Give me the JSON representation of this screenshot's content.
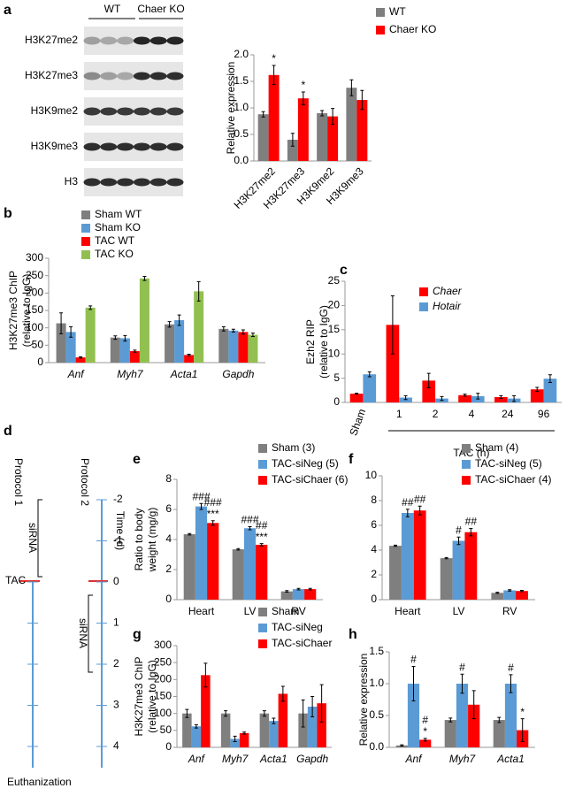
{
  "blot": {
    "label": "a",
    "groups": [
      "WT",
      "Chaer KO"
    ],
    "rows": [
      "H3K27me2",
      "H3K27me3",
      "H3K9me2",
      "H3K9me3",
      "H3"
    ]
  },
  "timeline": {
    "label": "d",
    "protocols": [
      "Protocol 1",
      "Protocol 2"
    ],
    "sirna": [
      "siRNA",
      "siRNA"
    ],
    "axis_label": "Time (d)",
    "event": "TAC",
    "end": "Euthanization",
    "ticks": [
      "-2",
      "-1",
      "0",
      "1",
      "2",
      "3",
      "4"
    ]
  },
  "chart_data": [
    {
      "type": "bar",
      "ylabel": [
        "Relative expression"
      ],
      "categories": [
        "H3K27me2",
        "H3K27me3",
        "H3K9me2",
        "H3K9me3"
      ],
      "rotate_categories": true,
      "ylim": [
        0,
        2
      ],
      "yticks": [
        {
          "value": 0,
          "label": "0.0"
        },
        {
          "value": 0.5,
          "label": "0.5"
        },
        {
          "value": 1,
          "label": "1.0"
        },
        {
          "value": 1.5,
          "label": "1.5"
        },
        {
          "value": 2,
          "label": "2.0"
        }
      ],
      "series": [
        {
          "name": "WT",
          "color": "#7f7f7f",
          "values": [
            0.88,
            0.4,
            0.9,
            1.38
          ],
          "errors": [
            0.05,
            0.12,
            0.05,
            0.15
          ]
        },
        {
          "name": "Chaer KO",
          "color": "#ff0000",
          "values": [
            1.62,
            1.18,
            0.84,
            1.15
          ],
          "errors": [
            0.18,
            0.12,
            0.15,
            0.18
          ],
          "annotations": [
            [
              "*"
            ],
            [
              "*"
            ],
            null,
            null
          ]
        }
      ]
    },
    {
      "type": "bar",
      "label": "b",
      "ylabel": [
        "H3K27me3 ChIP",
        "(relative to IgG)"
      ],
      "categories": [
        "Anf",
        "Myh7",
        "Acta1",
        "Gapdh"
      ],
      "italic_categories": true,
      "ylim": [
        0,
        300
      ],
      "yticks": [
        0,
        50,
        100,
        150,
        200,
        250,
        300
      ],
      "series": [
        {
          "name": "Sham WT",
          "color": "#7f7f7f",
          "values": [
            113,
            72,
            110,
            97
          ],
          "errors": [
            30,
            5,
            8,
            6
          ]
        },
        {
          "name": "Sham KO",
          "color": "#5b9bd5",
          "values": [
            88,
            70,
            122,
            92
          ],
          "errors": [
            15,
            8,
            15,
            4
          ]
        },
        {
          "name": "TAC WT",
          "color": "#ff0000",
          "values": [
            15,
            33,
            22,
            88
          ],
          "errors": [
            2,
            3,
            2,
            6
          ]
        },
        {
          "name": "TAC KO",
          "color": "#92c050",
          "values": [
            158,
            242,
            205,
            80
          ],
          "errors": [
            5,
            6,
            28,
            5
          ]
        }
      ]
    },
    {
      "type": "bar",
      "label": "c",
      "ylabel": [
        "Ezh2 RIP",
        "(relative to IgG)"
      ],
      "categories": [
        "Sham",
        "1",
        "2",
        "4",
        "24",
        "96"
      ],
      "xlabel": "TAC (h)",
      "legend_italic": true,
      "ylim": [
        0,
        25
      ],
      "yticks": [
        0,
        5,
        10,
        15,
        20,
        25
      ],
      "series": [
        {
          "name": "Chaer",
          "color": "#ff0000",
          "values": [
            1.8,
            16,
            4.5,
            1.5,
            1.1,
            2.7
          ],
          "errors": [
            0.1,
            6,
            1.5,
            0.2,
            0.3,
            0.4
          ]
        },
        {
          "name": "Hotair",
          "color": "#5b9bd5",
          "values": [
            5.8,
            1.0,
            0.8,
            1.3,
            0.8,
            4.9
          ],
          "errors": [
            0.5,
            0.4,
            0.4,
            0.6,
            0.6,
            0.8
          ]
        }
      ]
    },
    {
      "type": "bar",
      "label": "e",
      "ylabel": [
        "Ratio to body",
        "weight (mg/g)"
      ],
      "categories": [
        "Heart",
        "LV",
        "RV"
      ],
      "ylim": [
        0,
        8
      ],
      "yticks": [
        0,
        2,
        4,
        6,
        8
      ],
      "series": [
        {
          "name": "Sham (3)",
          "color": "#7f7f7f",
          "values": [
            4.35,
            3.35,
            0.55
          ],
          "errors": [
            0.05,
            0.05,
            0.05
          ]
        },
        {
          "name": "TAC-siNeg (5)",
          "color": "#5b9bd5",
          "values": [
            6.2,
            4.75,
            0.7
          ],
          "errors": [
            0.2,
            0.1,
            0.05
          ],
          "annotations": [
            [
              "###"
            ],
            [
              "###"
            ],
            null
          ]
        },
        {
          "name": "TAC-siChaer (6)",
          "color": "#ff0000",
          "values": [
            5.1,
            3.65,
            0.7
          ],
          "errors": [
            0.15,
            0.08,
            0.05
          ],
          "annotations": [
            [
              "###",
              "***"
            ],
            [
              "##",
              "***"
            ],
            null
          ]
        }
      ]
    },
    {
      "type": "bar",
      "label": "f",
      "categories": [
        "Heart",
        "LV",
        "RV"
      ],
      "ylim": [
        0,
        10
      ],
      "yticks": [
        0,
        2,
        4,
        6,
        8,
        10
      ],
      "series": [
        {
          "name": "Sham (4)",
          "color": "#7f7f7f",
          "values": [
            4.35,
            3.35,
            0.55
          ],
          "errors": [
            0.05,
            0.05,
            0.05
          ]
        },
        {
          "name": "TAC-siNeg (5)",
          "color": "#5b9bd5",
          "values": [
            7.0,
            4.75,
            0.75
          ],
          "errors": [
            0.3,
            0.3,
            0.05
          ],
          "annotations": [
            [
              "##"
            ],
            [
              "#"
            ],
            null
          ]
        },
        {
          "name": "TAC-siChaer (4)",
          "color": "#ff0000",
          "values": [
            7.2,
            5.45,
            0.7
          ],
          "errors": [
            0.35,
            0.3,
            0.05
          ],
          "annotations": [
            [
              "##"
            ],
            [
              "##"
            ],
            null
          ]
        }
      ]
    },
    {
      "type": "bar",
      "label": "g",
      "ylabel": [
        "H3K27me3 ChIP",
        "(relative to IgG)"
      ],
      "categories": [
        "Anf",
        "Myh7",
        "Acta1",
        "Gapdh"
      ],
      "italic_categories": true,
      "ylim": [
        0,
        300
      ],
      "yticks": [
        0,
        50,
        100,
        150,
        200,
        250,
        300
      ],
      "series": [
        {
          "name": "Sham",
          "color": "#7f7f7f",
          "values": [
            100,
            100,
            100,
            100
          ],
          "errors": [
            12,
            8,
            8,
            40
          ]
        },
        {
          "name": "TAC-siNeg",
          "color": "#5b9bd5",
          "values": [
            62,
            25,
            78,
            120
          ],
          "errors": [
            5,
            8,
            8,
            30
          ]
        },
        {
          "name": "TAC-siChaer",
          "color": "#ff0000",
          "values": [
            213,
            42,
            158,
            130
          ],
          "errors": [
            35,
            3,
            22,
            55
          ]
        }
      ]
    },
    {
      "type": "bar",
      "label": "h",
      "ylabel": [
        "Relative expression"
      ],
      "categories": [
        "Anf",
        "Myh7",
        "Acta1"
      ],
      "italic_categories": true,
      "legend": false,
      "ylim": [
        0,
        1.5
      ],
      "yticks": [
        {
          "value": 0,
          "label": "0.0"
        },
        {
          "value": 0.5,
          "label": "0.5"
        },
        {
          "value": 1,
          "label": "1.0"
        },
        {
          "value": 1.5,
          "label": "1.5"
        }
      ],
      "series": [
        {
          "name": "Sham",
          "color": "#7f7f7f",
          "values": [
            0.03,
            0.43,
            0.43
          ],
          "errors": [
            0.01,
            0.03,
            0.04
          ]
        },
        {
          "name": "TAC-siNeg",
          "color": "#5b9bd5",
          "values": [
            1.0,
            1.0,
            1.0
          ],
          "errors": [
            0.27,
            0.15,
            0.14
          ],
          "annotations": [
            [
              "#"
            ],
            [
              "#"
            ],
            [
              "#"
            ]
          ]
        },
        {
          "name": "TAC-siChaer",
          "color": "#ff0000",
          "values": [
            0.12,
            0.67,
            0.27
          ],
          "errors": [
            0.02,
            0.22,
            0.18
          ],
          "annotations": [
            [
              "#",
              "*"
            ],
            null,
            [
              "*"
            ]
          ]
        }
      ]
    }
  ]
}
